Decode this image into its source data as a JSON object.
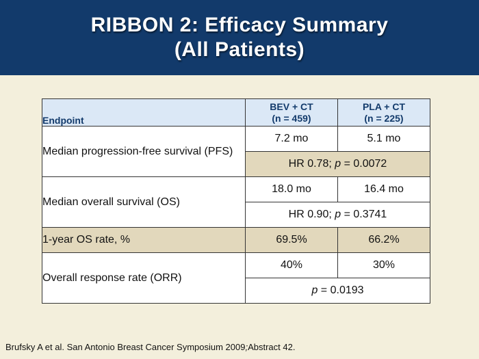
{
  "header": {
    "title_line1": "RIBBON 2: Efficacy Summary",
    "title_line2": "(All Patients)"
  },
  "table": {
    "columns": {
      "endpoint": "Endpoint",
      "bev_line1": "BEV + CT",
      "bev_line2": "(n = 459)",
      "pla_line1": "PLA + CT",
      "pla_line2": "(n = 225)"
    },
    "rows": {
      "pfs": {
        "label": "Median progression-free survival (PFS)",
        "bev": "7.2 mo",
        "pla": "5.1 mo",
        "hr_prefix": "HR 0.78; ",
        "p_symbol": "p",
        "p_value": " = 0.0072"
      },
      "os": {
        "label": "Median overall survival (OS)",
        "bev": "18.0 mo",
        "pla": "16.4 mo",
        "hr_prefix": "HR 0.90; ",
        "p_symbol": "p",
        "p_value": " = 0.3741"
      },
      "os1yr": {
        "label": "1-year OS rate, %",
        "bev": "69.5%",
        "pla": "66.2%"
      },
      "orr": {
        "label": "Overall response rate (ORR)",
        "bev": "40%",
        "pla": "30%",
        "p_symbol": "p",
        "p_value": " = 0.0193"
      }
    }
  },
  "footer": {
    "citation_main": "Brufsky A et al. San Antonio Breast Cancer Symposium 2009",
    "citation_sep": ";",
    "citation_abstract": "Abstract 42."
  },
  "colors": {
    "header_bg": "#123a6b",
    "slide_bg": "#f3efdc",
    "table_header_bg": "#dbe8f6",
    "highlight_row_bg": "#e2d8bc"
  }
}
